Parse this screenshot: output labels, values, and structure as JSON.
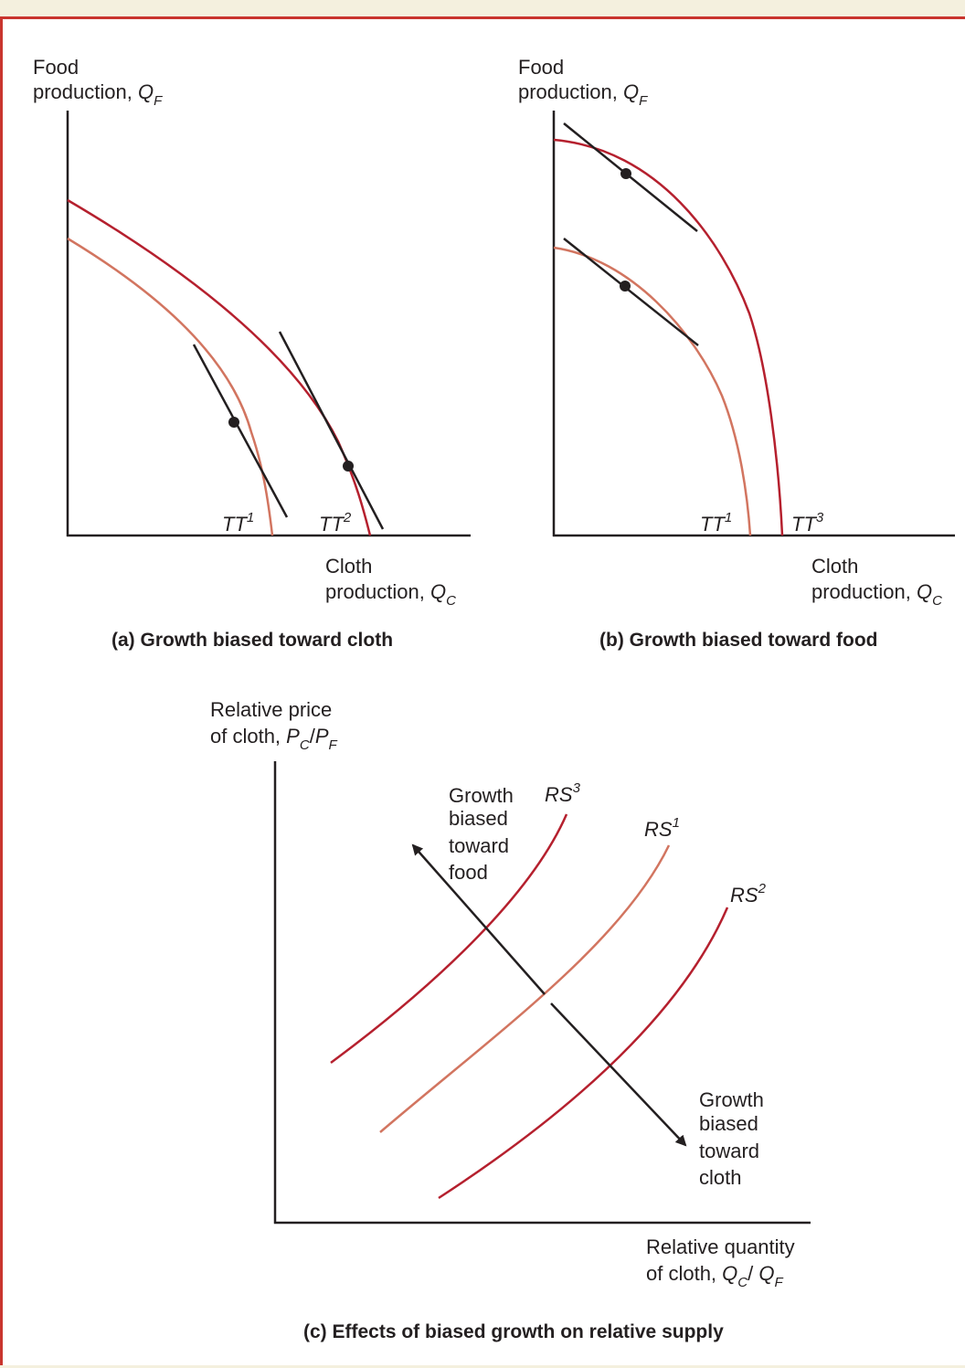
{
  "panels": {
    "a": {
      "ylabel_line1": "Food",
      "ylabel_line2": "production, ",
      "ylabel_var": "Q",
      "ylabel_sub": "F",
      "xlabel_line1": "Cloth",
      "xlabel_line2": "production, ",
      "xlabel_var": "Q",
      "xlabel_sub": "C",
      "curve1_label": "TT",
      "curve1_sup": "1",
      "curve2_label": "TT",
      "curve2_sup": "2",
      "caption": "(a) Growth biased toward cloth"
    },
    "b": {
      "ylabel_line1": "Food",
      "ylabel_line2": "production, ",
      "ylabel_var": "Q",
      "ylabel_sub": "F",
      "xlabel_line1": "Cloth",
      "xlabel_line2": "production, ",
      "xlabel_var": "Q",
      "xlabel_sub": "C",
      "curve1_label": "TT",
      "curve1_sup": "1",
      "curve3_label": "TT",
      "curve3_sup": "3",
      "caption": "(b) Growth biased toward food"
    },
    "c": {
      "ylabel_line1": "Relative price",
      "ylabel_line2": "of cloth, ",
      "ylabel_p1": "P",
      "ylabel_s1": "C",
      "ylabel_slash": "/",
      "ylabel_p2": "P",
      "ylabel_s2": "F",
      "xlabel_line1": "Relative quantity",
      "xlabel_line2": "of cloth, ",
      "xlabel_q1": "Q",
      "xlabel_s1": "C",
      "xlabel_slash": "/ ",
      "xlabel_q2": "Q",
      "xlabel_s2": "F",
      "rs3_label": "RS",
      "rs3_sup": "3",
      "rs1_label": "RS",
      "rs1_sup": "1",
      "rs2_label": "RS",
      "rs2_sup": "2",
      "food_arrow_text": [
        "Growth",
        "biased",
        "toward",
        "food"
      ],
      "cloth_arrow_text": [
        "Growth",
        "biased",
        "toward",
        "cloth"
      ],
      "caption": "(c) Effects of biased growth on relative supply"
    }
  },
  "colors": {
    "dark_red": "#b5202e",
    "light_red": "#d27560",
    "black": "#231f20",
    "frame": "#c9352e",
    "background": "#f4f0de"
  }
}
